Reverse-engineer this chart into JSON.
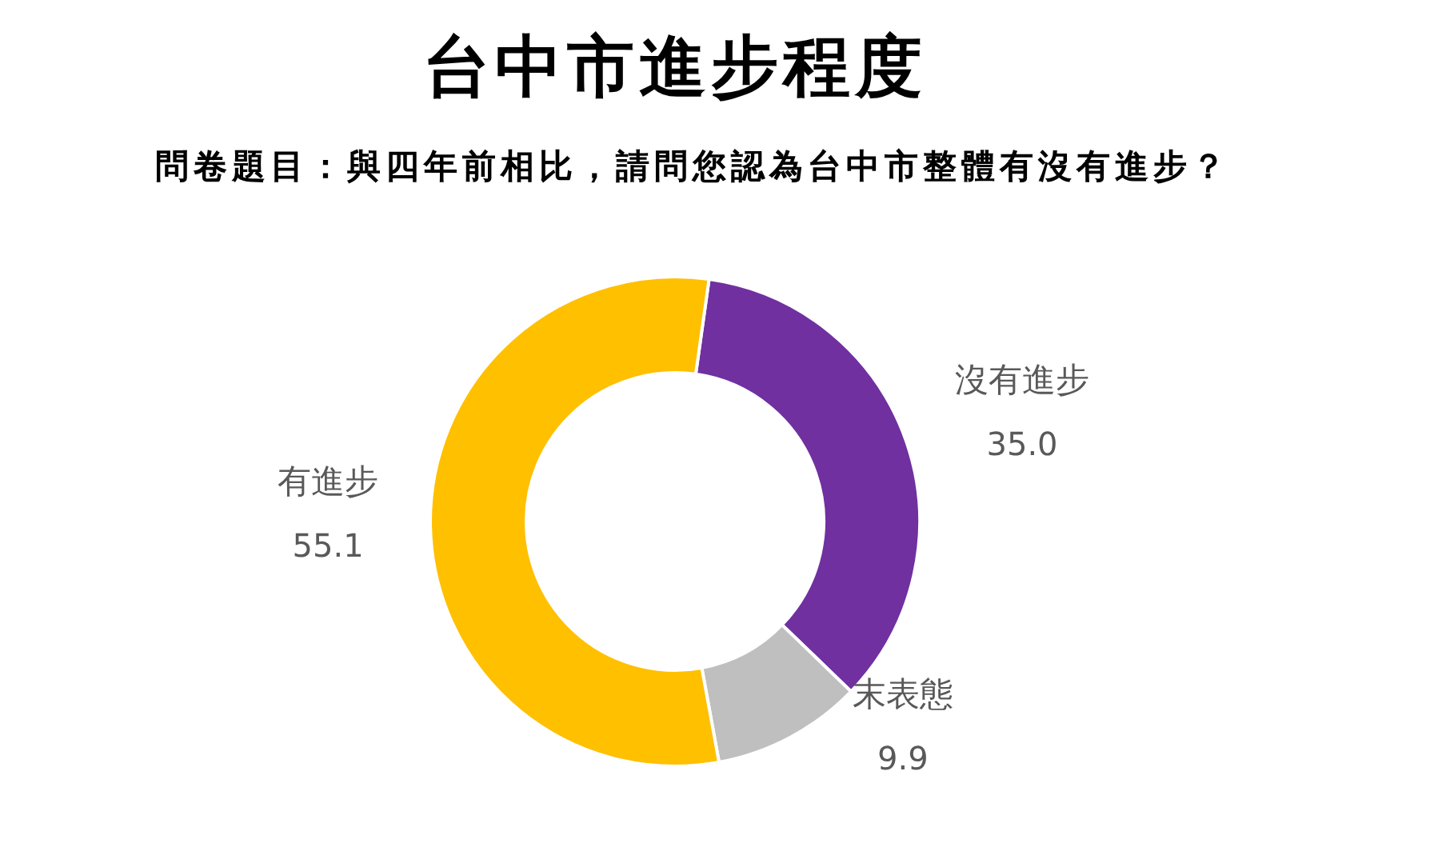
{
  "chart_data": {
    "type": "donut",
    "title": "台中市進步程度",
    "subtitle": "問卷題目：與四年前相比，請問您認為台中市整體有沒有進步？",
    "categories": [
      "沒有進步",
      "末表態",
      "有進步"
    ],
    "values": [
      35.0,
      9.9,
      55.1
    ],
    "value_labels": [
      "35.0",
      "9.9",
      "55.1"
    ],
    "colors": [
      "#7030a0",
      "#bfbfbf",
      "#ffc000"
    ]
  }
}
